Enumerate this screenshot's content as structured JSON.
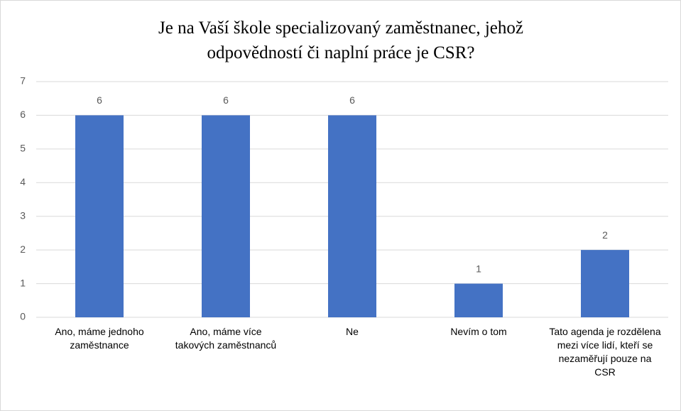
{
  "chart_data": {
    "type": "bar",
    "title": "Je na Vaší škole specializovaný zaměstnanec, jehož odpovědností či naplní práce je CSR?",
    "categories": [
      "Ano, máme jednoho zaměstnance",
      "Ano, máme více takových zaměstnanců",
      "Ne",
      "Nevím o tom",
      "Tato agenda je rozdělena mezi více lidí, kteří se nezaměřují pouze na CSR"
    ],
    "values": [
      6,
      6,
      6,
      1,
      2
    ],
    "color": "#4472c4",
    "ylim": [
      0,
      7
    ],
    "yticks": [
      0,
      1,
      2,
      3,
      4,
      5,
      6,
      7
    ],
    "grid": true,
    "data_labels": true
  }
}
